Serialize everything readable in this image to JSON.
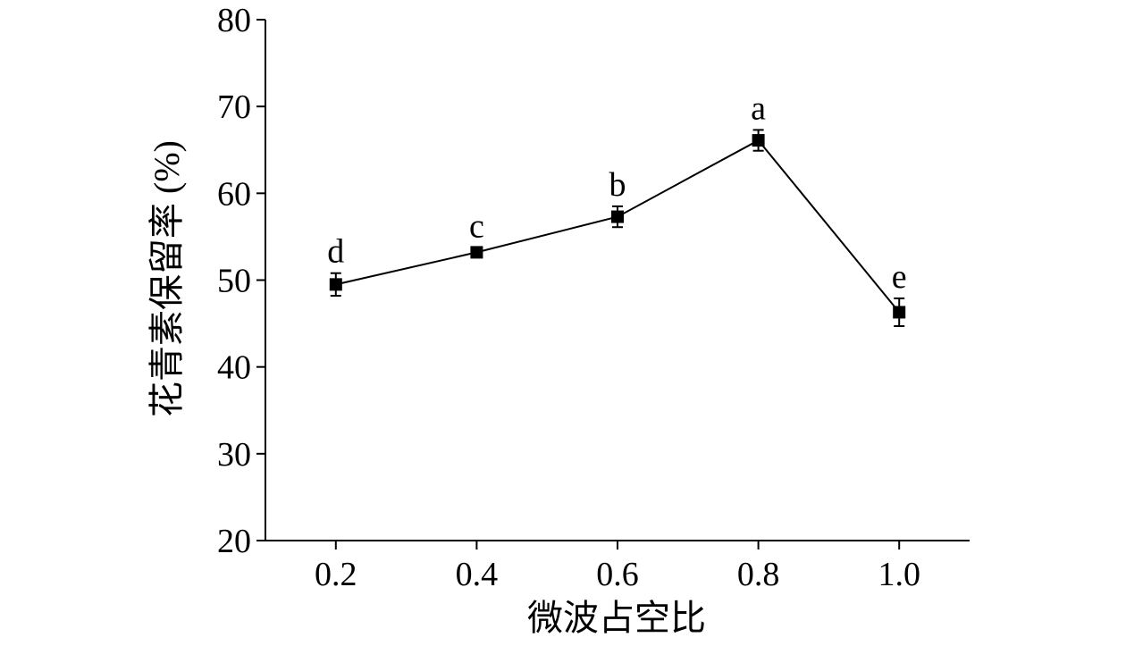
{
  "chart_data": {
    "type": "line",
    "xlabel": "微波占空比",
    "ylabel": "花青素保留率 (%)",
    "x_ticks": [
      "0.2",
      "0.4",
      "0.6",
      "0.8",
      "1.0"
    ],
    "y_ticks": [
      "20",
      "30",
      "40",
      "50",
      "60",
      "70",
      "80"
    ],
    "xlim": [
      0.1,
      1.1
    ],
    "ylim": [
      20,
      80
    ],
    "grid": false,
    "series": [
      {
        "x": [
          0.2,
          0.4,
          0.6,
          0.8,
          1.0
        ],
        "y": [
          49.5,
          53.2,
          57.3,
          66.1,
          46.3
        ],
        "error": [
          1.3,
          0.5,
          1.2,
          1.2,
          1.6
        ],
        "labels": [
          "d",
          "c",
          "b",
          "a",
          "e"
        ],
        "color": "#000000",
        "marker": "square"
      }
    ]
  }
}
